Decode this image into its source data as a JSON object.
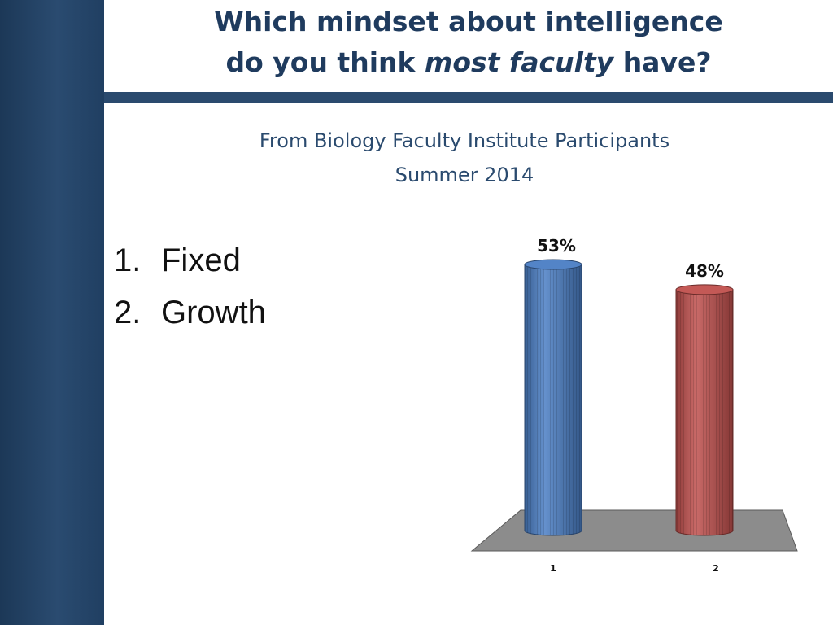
{
  "slide": {
    "title_line1": "Which mindset about intelligence",
    "title_line2_a": "do you think ",
    "title_line2_em": "most faculty",
    "title_line2_b": " have?",
    "subtitle_line1": "From Biology Faculty Institute Participants",
    "subtitle_line2": "Summer 2014"
  },
  "choices": [
    {
      "number": "1.",
      "label": "Fixed"
    },
    {
      "number": "2.",
      "label": "Growth"
    }
  ],
  "chart_data": {
    "type": "bar",
    "style": "3d-cylinder",
    "categories": [
      "1",
      "2"
    ],
    "values": [
      53,
      48
    ],
    "data_labels": [
      "53%",
      "48%"
    ],
    "colors": [
      "#4a7ec4",
      "#c0504d"
    ],
    "floor_color": "#8c8c8c",
    "ylim": [
      0,
      53
    ],
    "grid": false,
    "legend": "none"
  }
}
